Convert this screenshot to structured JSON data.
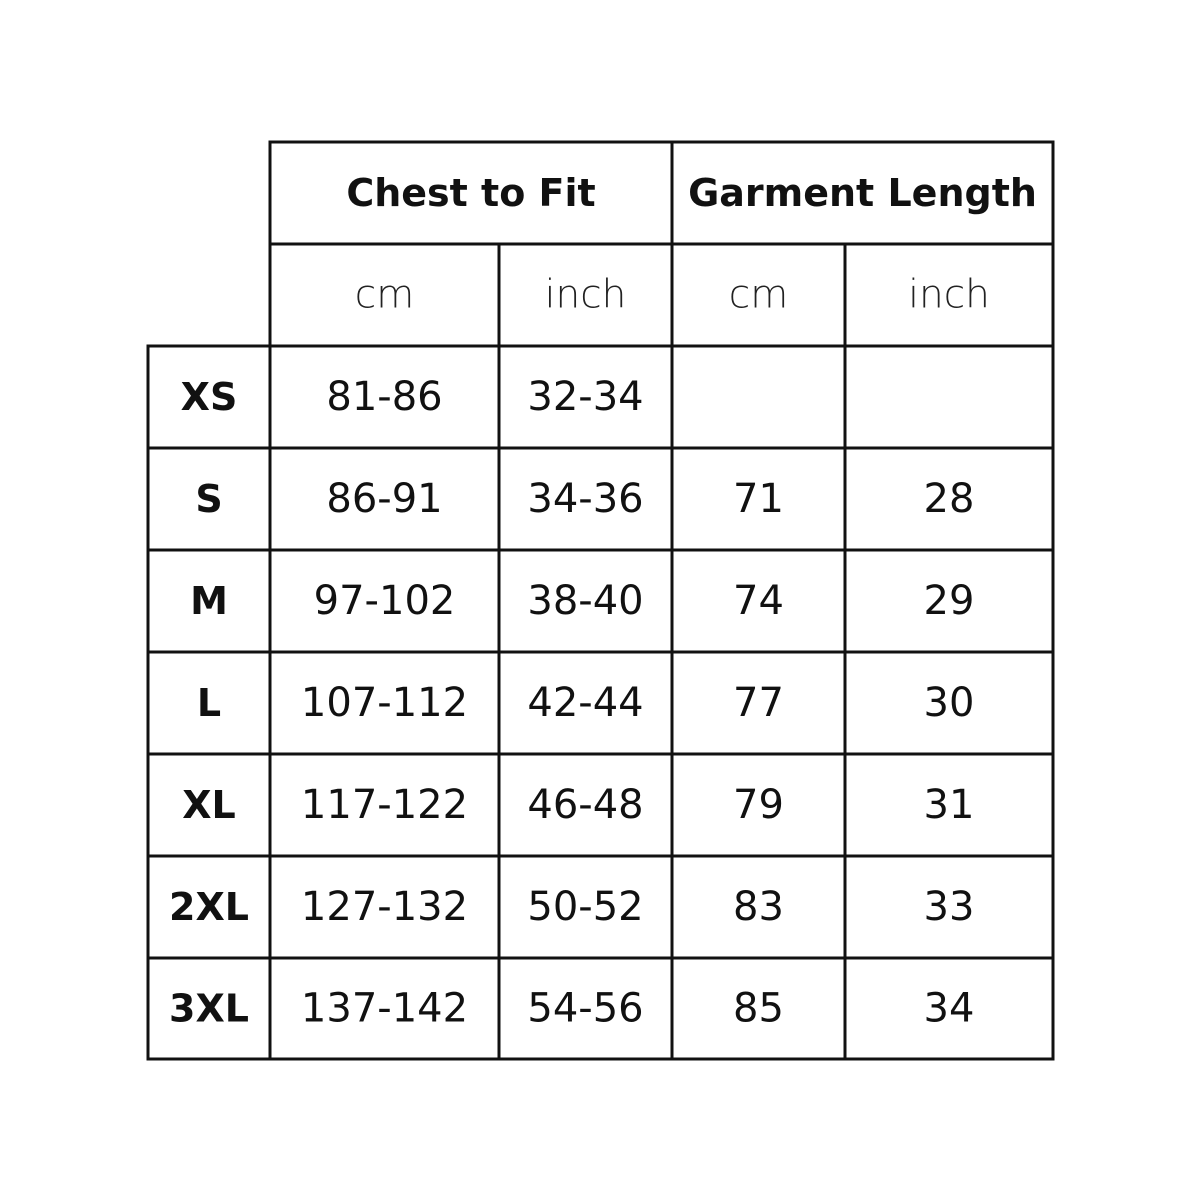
{
  "table": {
    "groups": [
      "Chest to Fit",
      "Garment Length"
    ],
    "units": [
      "cm",
      "inch",
      "cm",
      "inch"
    ],
    "rows": [
      [
        "XS",
        "81-86",
        "32-34",
        null,
        null
      ],
      [
        "S",
        "86-91",
        "34-36",
        71,
        28
      ],
      [
        "M",
        "97-102",
        "38-40",
        74,
        29
      ],
      [
        "L",
        "107-112",
        "42-44",
        77,
        30
      ],
      [
        "XL",
        "117-122",
        "46-48",
        79,
        31
      ],
      [
        "2XL",
        "127-132",
        "50-52",
        83,
        33
      ],
      [
        "3XL",
        "137-142",
        "54-56",
        85,
        34
      ]
    ]
  }
}
